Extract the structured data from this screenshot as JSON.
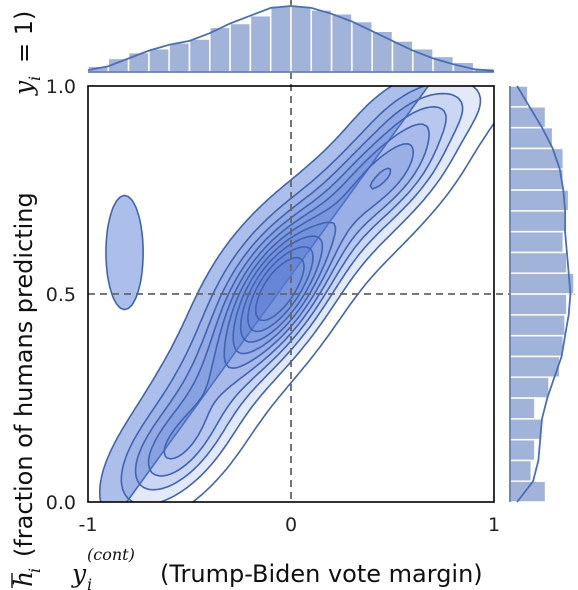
{
  "chart_data": {
    "type": "joint-kde",
    "title": "",
    "xlabel": {
      "symbol": "y",
      "subscript": "i",
      "superscript": "(cont)",
      "text": "(Trump-Biden vote margin)"
    },
    "ylabel": {
      "symbol": "h",
      "subscript": "i",
      "text_before": "(fraction of humans predicting",
      "text_var": "y",
      "text_var_sub": "i",
      "text_after": "= 1)"
    },
    "xlim": [
      -1,
      1
    ],
    "ylim": [
      0,
      1
    ],
    "xticks": [
      "-1",
      "0",
      "1"
    ],
    "yticks": [
      "0.0",
      "0.5",
      "1.0"
    ],
    "reference_lines": {
      "x": 0,
      "y": 0.5
    },
    "colors": {
      "contour_fill": "#5a7fd6",
      "contour_line": "#3f64b3",
      "hist_fill": "#a2b3d9",
      "hist_edge": "#ffffff",
      "kde_line": "#4a6fba",
      "ref_line": "#666666",
      "axes": "#000000"
    },
    "density": {
      "centers": [
        {
          "x": -0.07,
          "y": 0.5,
          "sx": 0.18,
          "sy": 0.11,
          "rho": 0.55,
          "w": 1.0
        },
        {
          "x": 0.5,
          "y": 0.81,
          "sx": 0.2,
          "sy": 0.09,
          "rho": 0.6,
          "w": 0.55
        },
        {
          "x": -0.58,
          "y": 0.12,
          "sx": 0.18,
          "sy": 0.09,
          "rho": 0.55,
          "w": 0.45
        },
        {
          "x": -0.35,
          "y": 0.3,
          "sx": 0.2,
          "sy": 0.11,
          "rho": 0.6,
          "w": 0.35
        },
        {
          "x": 0.2,
          "y": 0.65,
          "sx": 0.28,
          "sy": 0.12,
          "rho": 0.7,
          "w": 0.4
        },
        {
          "x": -0.82,
          "y": 0.6,
          "sx": 0.08,
          "sy": 0.12,
          "rho": 0.0,
          "w": 0.12
        },
        {
          "x": 0.72,
          "y": 0.95,
          "sx": 0.2,
          "sy": 0.06,
          "rho": 0.4,
          "w": 0.22
        }
      ],
      "levels": 10
    },
    "x_marginal": {
      "bin_edges": [
        -1.0,
        -0.9,
        -0.8,
        -0.7,
        -0.6,
        -0.5,
        -0.4,
        -0.3,
        -0.2,
        -0.1,
        0.0,
        0.1,
        0.2,
        0.3,
        0.4,
        0.5,
        0.6,
        0.7,
        0.8,
        0.9,
        1.0
      ],
      "counts": [
        3,
        7,
        10,
        12,
        15,
        17,
        23,
        25,
        29,
        34,
        34,
        32,
        30,
        26,
        21,
        16,
        12,
        8,
        5,
        2
      ],
      "kde": [
        1,
        3,
        7,
        11,
        14,
        16,
        20,
        25,
        29,
        33,
        34,
        33,
        30,
        26,
        21,
        16,
        11,
        7,
        4,
        1.5,
        0.5
      ]
    },
    "y_marginal": {
      "bin_edges": [
        0.0,
        0.05,
        0.1,
        0.15,
        0.2,
        0.25,
        0.3,
        0.35,
        0.4,
        0.45,
        0.5,
        0.55,
        0.6,
        0.65,
        0.7,
        0.75,
        0.8,
        0.85,
        0.9,
        0.95,
        1.0
      ],
      "counts": [
        20,
        12,
        14,
        18,
        14,
        22,
        28,
        30,
        31,
        32,
        36,
        32,
        30,
        31,
        33,
        30,
        30,
        24,
        20,
        10
      ],
      "kde": [
        4,
        13,
        16,
        17,
        18,
        21,
        25,
        29,
        31,
        33,
        34,
        33,
        32,
        31,
        31,
        30,
        28,
        24,
        18,
        11,
        4
      ]
    }
  }
}
